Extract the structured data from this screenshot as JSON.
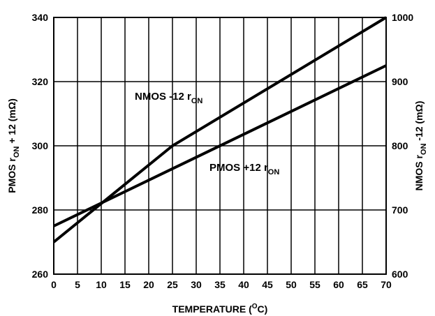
{
  "chart_data": {
    "type": "line",
    "xlabel": "TEMPERATURE (",
    "xlabel_sup": "O",
    "xlabel_tail": "C)",
    "ylabel_left": {
      "pre": "PMOS r",
      "sub": "ON",
      "post": " + 12 (mΩ)"
    },
    "ylabel_right": {
      "pre": "NMOS r",
      "sub": "ON",
      "post": " -12 (mΩ)"
    },
    "xlim": [
      0,
      70
    ],
    "ylim_left": [
      260,
      340
    ],
    "ylim_right": [
      600,
      1000
    ],
    "x_ticks": [
      "0",
      "5",
      "10",
      "15",
      "20",
      "25",
      "30",
      "35",
      "40",
      "45",
      "50",
      "55",
      "60",
      "65",
      "70"
    ],
    "y_ticks_left": [
      "260",
      "280",
      "300",
      "320",
      "340"
    ],
    "y_ticks_right": [
      "600",
      "700",
      "800",
      "900",
      "1000"
    ],
    "grid": true,
    "series": [
      {
        "name": "NMOS -12 r",
        "name_sub": "ON",
        "axis": "right",
        "x": [
          0,
          25,
          70
        ],
        "y": [
          650,
          800,
          1000
        ]
      },
      {
        "name": "PMOS +12 r",
        "name_sub": "ON",
        "axis": "left",
        "x": [
          0,
          70
        ],
        "y": [
          275,
          325
        ]
      }
    ]
  }
}
